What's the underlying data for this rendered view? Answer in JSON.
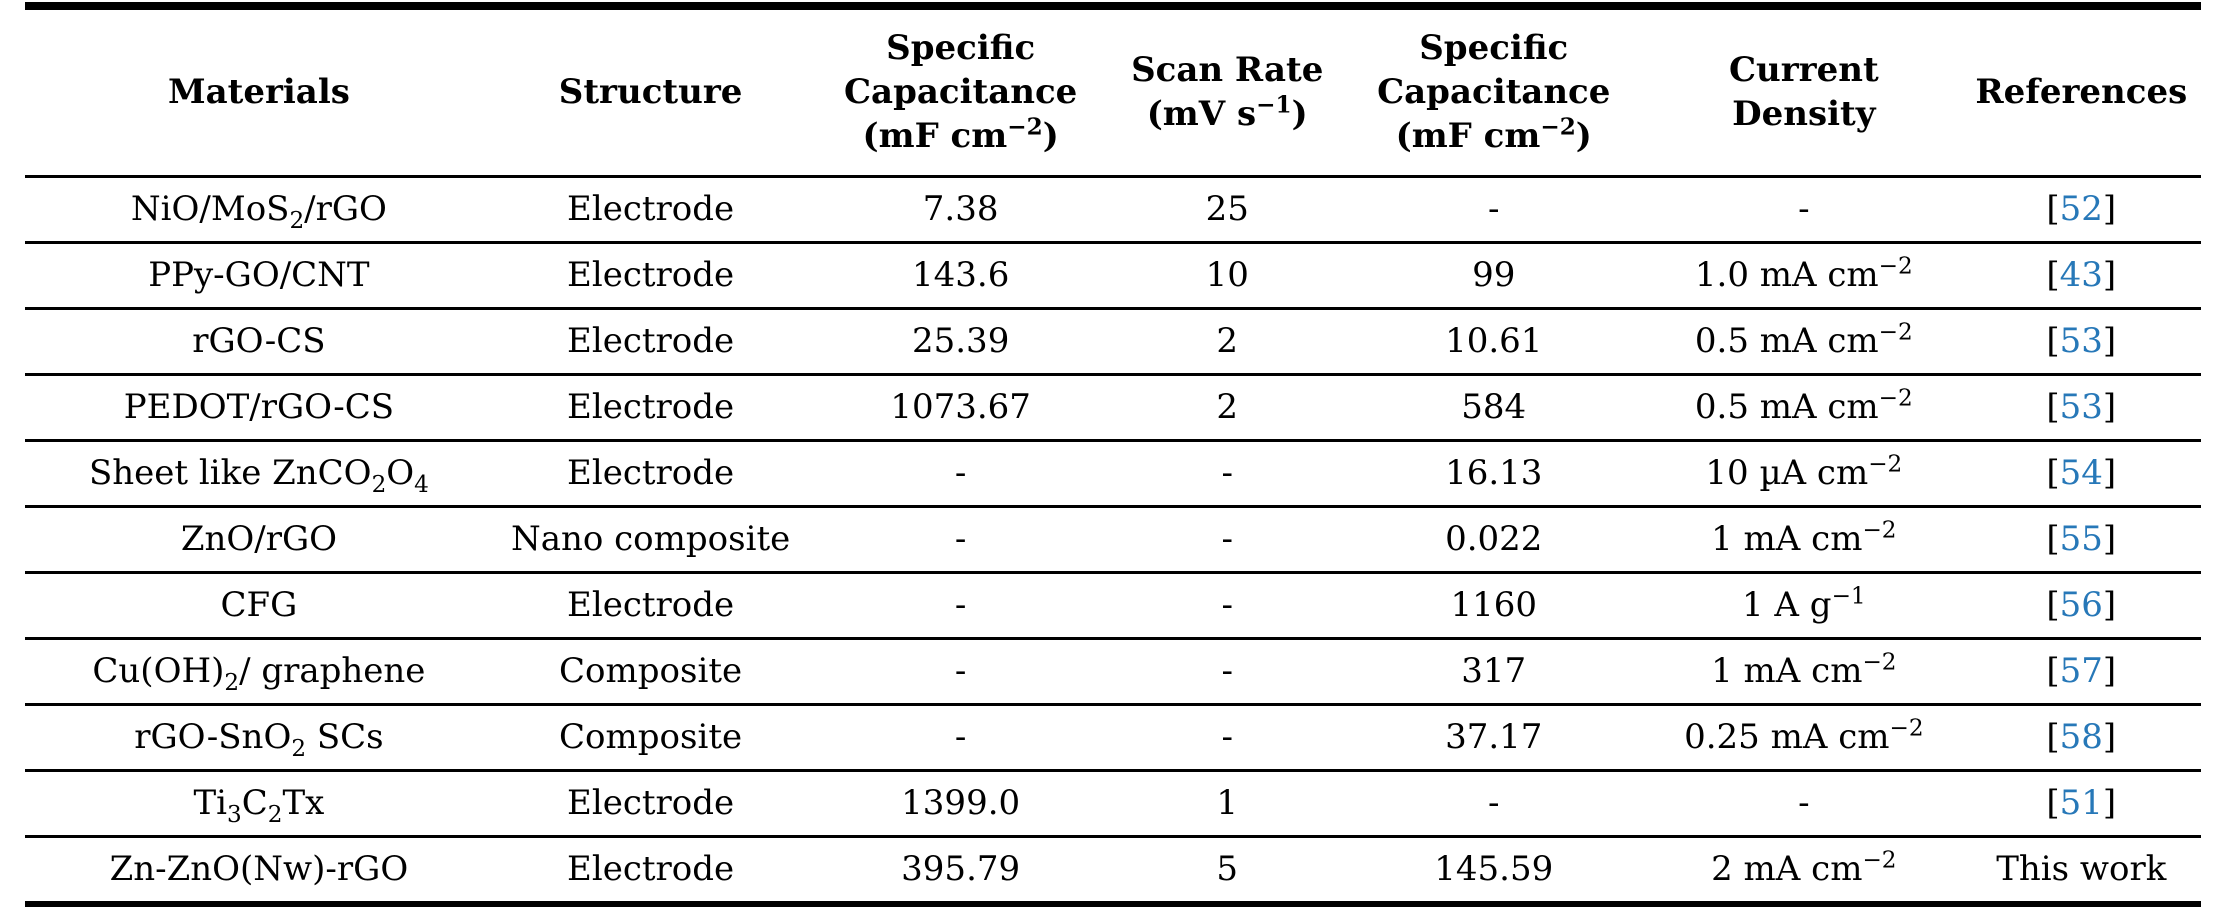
{
  "colors": {
    "reference_link": "#2778B8",
    "text": "#000000",
    "rule": "#000000"
  },
  "table": {
    "columns": [
      {
        "key": "materials",
        "label": "Materials"
      },
      {
        "key": "structure",
        "label": "Structure"
      },
      {
        "key": "specific_capacitance_cv",
        "label": "Specific\nCapacitance\n(mF cm^{−2})"
      },
      {
        "key": "scan_rate",
        "label": "Scan Rate\n(mV s^{−1})"
      },
      {
        "key": "specific_capacitance_gcd",
        "label": "Specific\nCapacitance\n(mF cm^{−2})"
      },
      {
        "key": "current_density",
        "label": "Current\nDensity"
      },
      {
        "key": "references",
        "label": "References"
      }
    ],
    "rows": [
      {
        "cells": [
          "NiO/MoS_{2}/rGO",
          "Electrode",
          "7.38",
          "25",
          "-",
          "-"
        ],
        "reference": {
          "text": "52",
          "bracketed": true,
          "is_link": true
        }
      },
      {
        "cells": [
          "PPy-GO/CNT",
          "Electrode",
          "143.6",
          "10",
          "99",
          "1.0 mA cm^{−2}"
        ],
        "reference": {
          "text": "43",
          "bracketed": true,
          "is_link": true
        }
      },
      {
        "cells": [
          "rGO-CS",
          "Electrode",
          "25.39",
          "2",
          "10.61",
          "0.5 mA cm^{−2}"
        ],
        "reference": {
          "text": "53",
          "bracketed": true,
          "is_link": true
        }
      },
      {
        "cells": [
          "PEDOT/rGO-CS",
          "Electrode",
          "1073.67",
          "2",
          "584",
          "0.5 mA cm^{−2}"
        ],
        "reference": {
          "text": "53",
          "bracketed": true,
          "is_link": true
        }
      },
      {
        "cells": [
          "Sheet like ZnCO_{2}O_{4}",
          "Electrode",
          "-",
          "-",
          "16.13",
          "10 µA cm^{−2}"
        ],
        "reference": {
          "text": "54",
          "bracketed": true,
          "is_link": true
        }
      },
      {
        "cells": [
          "ZnO/rGO",
          "Nano composite",
          "-",
          "-",
          "0.022",
          "1 mA cm^{−2}"
        ],
        "reference": {
          "text": "55",
          "bracketed": true,
          "is_link": true
        }
      },
      {
        "cells": [
          "CFG",
          "Electrode",
          "-",
          "-",
          "1160",
          "1 A g^{−1}"
        ],
        "reference": {
          "text": "56",
          "bracketed": true,
          "is_link": true
        }
      },
      {
        "cells": [
          "Cu(OH)_{2}/ graphene",
          "Composite",
          "-",
          "-",
          "317",
          "1 mA cm^{−2}"
        ],
        "reference": {
          "text": "57",
          "bracketed": true,
          "is_link": true
        }
      },
      {
        "cells": [
          "rGO-SnO_{2} SCs",
          "Composite",
          "-",
          "-",
          "37.17",
          "0.25 mA cm^{−2}"
        ],
        "reference": {
          "text": "58",
          "bracketed": true,
          "is_link": true
        }
      },
      {
        "cells": [
          "Ti_{3}C_{2}Tx",
          "Electrode",
          "1399.0",
          "1",
          "-",
          "-"
        ],
        "reference": {
          "text": "51",
          "bracketed": true,
          "is_link": true
        }
      },
      {
        "cells": [
          "Zn-ZnO(Nw)-rGO",
          "Electrode",
          "395.79",
          "5",
          "145.59",
          "2 mA cm^{−2}"
        ],
        "reference": {
          "text": "This work",
          "bracketed": false,
          "is_link": false
        }
      }
    ]
  }
}
